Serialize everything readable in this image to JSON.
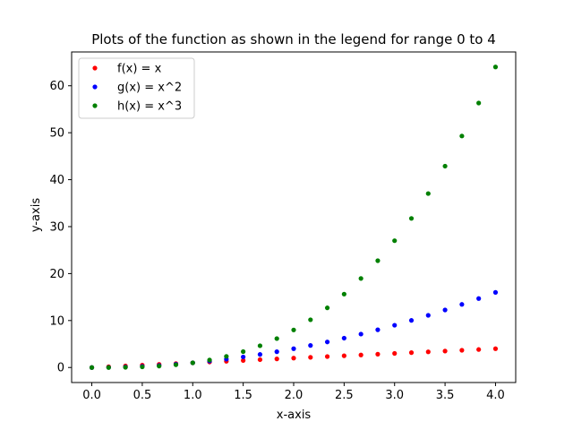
{
  "chart_data": {
    "type": "scatter",
    "title": "Plots of the function as shown in the legend for range 0 to 4",
    "xlabel": "x-axis",
    "ylabel": "y-axis",
    "xlim": [
      -0.2,
      4.2
    ],
    "ylim": [
      -3.2,
      67.2
    ],
    "xticks": [
      0.0,
      0.5,
      1.0,
      1.5,
      2.0,
      2.5,
      3.0,
      3.5,
      4.0
    ],
    "xtick_labels": [
      "0.0",
      "0.5",
      "1.0",
      "1.5",
      "2.0",
      "2.5",
      "3.0",
      "3.5",
      "4.0"
    ],
    "yticks": [
      0,
      10,
      20,
      30,
      40,
      50,
      60
    ],
    "ytick_labels": [
      "0",
      "10",
      "20",
      "30",
      "40",
      "50",
      "60"
    ],
    "grid": false,
    "legend_position": "top-left",
    "x": [
      0.0,
      0.1667,
      0.3333,
      0.5,
      0.6667,
      0.8333,
      1.0,
      1.1667,
      1.3333,
      1.5,
      1.6667,
      1.8333,
      2.0,
      2.1667,
      2.3333,
      2.5,
      2.6667,
      2.8333,
      3.0,
      3.1667,
      3.3333,
      3.5,
      3.6667,
      3.8333,
      4.0
    ],
    "series": [
      {
        "name": "f(x) = x",
        "color": "#ff0000",
        "values": [
          0.0,
          0.17,
          0.33,
          0.5,
          0.67,
          0.83,
          1.0,
          1.17,
          1.33,
          1.5,
          1.67,
          1.83,
          2.0,
          2.17,
          2.33,
          2.5,
          2.67,
          2.83,
          3.0,
          3.17,
          3.33,
          3.5,
          3.67,
          3.83,
          4.0
        ]
      },
      {
        "name": "g(x) = x^2",
        "color": "#0000ff",
        "values": [
          0.0,
          0.03,
          0.11,
          0.25,
          0.44,
          0.69,
          1.0,
          1.36,
          1.78,
          2.25,
          2.78,
          3.36,
          4.0,
          4.69,
          5.44,
          6.25,
          7.11,
          8.03,
          9.0,
          10.03,
          11.11,
          12.25,
          13.44,
          14.69,
          16.0
        ]
      },
      {
        "name": "h(x) = x^3",
        "color": "#008000",
        "values": [
          0.0,
          0.0,
          0.04,
          0.13,
          0.3,
          0.58,
          1.0,
          1.59,
          2.37,
          3.38,
          4.63,
          6.16,
          8.0,
          10.17,
          12.7,
          15.63,
          18.96,
          22.75,
          27.0,
          31.75,
          37.04,
          42.88,
          49.3,
          56.33,
          64.0
        ]
      }
    ]
  }
}
